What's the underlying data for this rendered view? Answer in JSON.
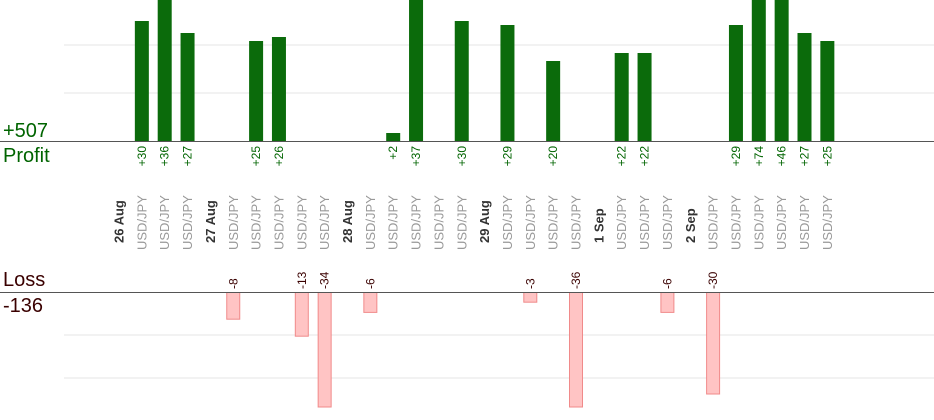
{
  "labels": {
    "profit_total": "+507",
    "profit_label": "Profit",
    "loss_label": "Loss",
    "loss_total": "-136"
  },
  "colors": {
    "profit_bar": "#0b6b0b",
    "profit_text": "#006400",
    "loss_fill": "#ffc4c4",
    "loss_stroke": "#f08a8a",
    "loss_text": "#3a0000",
    "axis": "#555555",
    "grid": "#e6e6e6",
    "tick_text": "#999999",
    "date_text": "#333333"
  },
  "chart_data": {
    "type": "bar",
    "title": "",
    "xlabel": "",
    "ylabel": "",
    "profit_total": 507,
    "loss_total": -136,
    "categories": [
      {
        "label": "26 Aug",
        "kind": "date"
      },
      {
        "label": "USD/JPY",
        "kind": "trade",
        "value": 30,
        "text": "+30"
      },
      {
        "label": "USD/JPY",
        "kind": "trade",
        "value": 36,
        "text": "+36"
      },
      {
        "label": "USD/JPY",
        "kind": "trade",
        "value": 27,
        "text": "+27"
      },
      {
        "label": "27 Aug",
        "kind": "date"
      },
      {
        "label": "USD/JPY",
        "kind": "trade",
        "value": -8,
        "text": "-8"
      },
      {
        "label": "USD/JPY",
        "kind": "trade",
        "value": 25,
        "text": "+25"
      },
      {
        "label": "USD/JPY",
        "kind": "trade",
        "value": 26,
        "text": "+26"
      },
      {
        "label": "USD/JPY",
        "kind": "trade",
        "value": -13,
        "text": "-13"
      },
      {
        "label": "USD/JPY",
        "kind": "trade",
        "value": -34,
        "text": "-34"
      },
      {
        "label": "28 Aug",
        "kind": "date"
      },
      {
        "label": "USD/JPY",
        "kind": "trade",
        "value": -6,
        "text": "-6"
      },
      {
        "label": "USD/JPY",
        "kind": "trade",
        "value": 2,
        "text": "+2"
      },
      {
        "label": "USD/JPY",
        "kind": "trade",
        "value": 37,
        "text": "+37"
      },
      {
        "label": "USD/JPY",
        "kind": "trade",
        "value": 0,
        "text": ""
      },
      {
        "label": "USD/JPY",
        "kind": "trade",
        "value": 30,
        "text": "+30"
      },
      {
        "label": "29 Aug",
        "kind": "date"
      },
      {
        "label": "USD/JPY",
        "kind": "trade",
        "value": 29,
        "text": "+29"
      },
      {
        "label": "USD/JPY",
        "kind": "trade",
        "value": -3,
        "text": "-3"
      },
      {
        "label": "USD/JPY",
        "kind": "trade",
        "value": 20,
        "text": "+20"
      },
      {
        "label": "USD/JPY",
        "kind": "trade",
        "value": -36,
        "text": "-36"
      },
      {
        "label": "1 Sep",
        "kind": "date"
      },
      {
        "label": "USD/JPY",
        "kind": "trade",
        "value": 22,
        "text": "+22"
      },
      {
        "label": "USD/JPY",
        "kind": "trade",
        "value": 22,
        "text": "+22"
      },
      {
        "label": "USD/JPY",
        "kind": "trade",
        "value": -6,
        "text": "-6"
      },
      {
        "label": "2 Sep",
        "kind": "date"
      },
      {
        "label": "USD/JPY",
        "kind": "trade",
        "value": -30,
        "text": "-30"
      },
      {
        "label": "USD/JPY",
        "kind": "trade",
        "value": 29,
        "text": "+29"
      },
      {
        "label": "USD/JPY",
        "kind": "trade",
        "value": 74,
        "text": "+74"
      },
      {
        "label": "USD/JPY",
        "kind": "trade",
        "value": 46,
        "text": "+46"
      },
      {
        "label": "USD/JPY",
        "kind": "trade",
        "value": 27,
        "text": "+27"
      },
      {
        "label": "USD/JPY",
        "kind": "trade",
        "value": 25,
        "text": "+25"
      }
    ]
  }
}
